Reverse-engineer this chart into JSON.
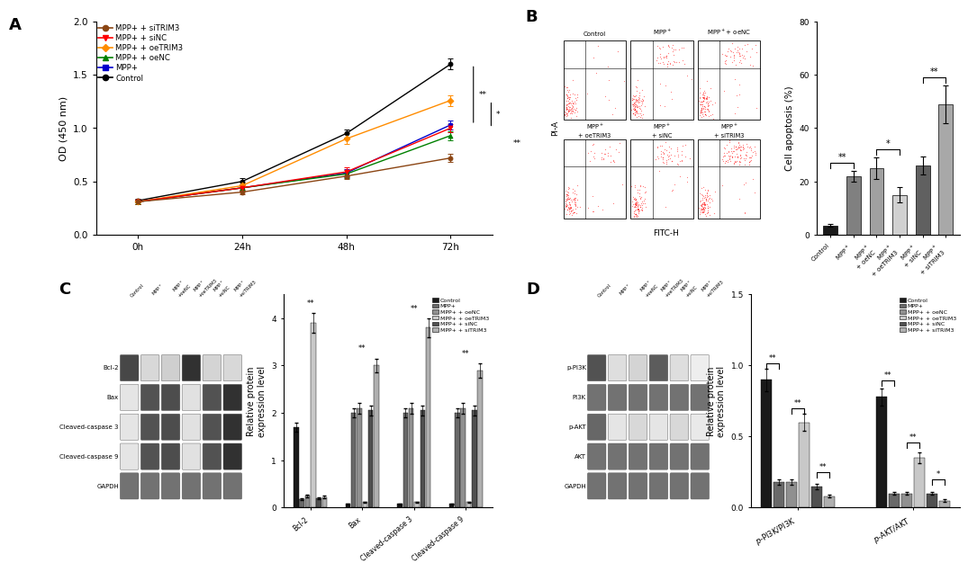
{
  "panel_A": {
    "timepoints": [
      "0h",
      "24h",
      "48h",
      "72h"
    ],
    "series": {
      "Control": {
        "color": "#000000",
        "marker": "o",
        "values": [
          0.32,
          0.5,
          0.95,
          1.6
        ],
        "errors": [
          0.02,
          0.03,
          0.04,
          0.05
        ]
      },
      "MPP+": {
        "color": "#0000CC",
        "marker": "s",
        "values": [
          0.31,
          0.44,
          0.58,
          1.03
        ],
        "errors": [
          0.02,
          0.03,
          0.04,
          0.04
        ]
      },
      "MPP+ + oeNC": {
        "color": "#008000",
        "marker": "^",
        "values": [
          0.31,
          0.44,
          0.57,
          0.93
        ],
        "errors": [
          0.02,
          0.03,
          0.04,
          0.04
        ]
      },
      "MPP+ + oeTRIM3": {
        "color": "#FF8C00",
        "marker": "D",
        "values": [
          0.31,
          0.46,
          0.9,
          1.26
        ],
        "errors": [
          0.02,
          0.03,
          0.05,
          0.05
        ]
      },
      "MPP+ + siNC": {
        "color": "#FF0000",
        "marker": "v",
        "values": [
          0.31,
          0.44,
          0.59,
          1.0
        ],
        "errors": [
          0.02,
          0.03,
          0.04,
          0.04
        ]
      },
      "MPP+ + siTRIM3": {
        "color": "#8B4513",
        "marker": "o",
        "values": [
          0.31,
          0.4,
          0.55,
          0.72
        ],
        "errors": [
          0.02,
          0.02,
          0.03,
          0.04
        ]
      }
    },
    "ylabel": "OD (450 nm)",
    "ylim": [
      0.0,
      2.0
    ],
    "yticks": [
      0.0,
      0.5,
      1.0,
      1.5,
      2.0
    ],
    "legend_order": [
      "MPP+ + siTRIM3",
      "MPP+ + siNC",
      "MPP+ + oeTRIM3",
      "MPP+ + oeNC",
      "MPP+",
      "Control"
    ]
  },
  "panel_B_bar": {
    "categories": [
      "Control",
      "MPP+",
      "MPP+\n+ oeNC",
      "MPP+\n+ oeTRIM3",
      "MPP+\n+ siNC",
      "MPP+\n+ siTRIM3"
    ],
    "values": [
      3.5,
      22.0,
      25.0,
      15.0,
      26.0,
      49.0
    ],
    "errors": [
      0.5,
      2.0,
      4.0,
      3.0,
      3.5,
      7.0
    ],
    "colors": [
      "#1a1a1a",
      "#808080",
      "#a0a0a0",
      "#d0d0d0",
      "#606060",
      "#a8a8a8"
    ],
    "ylabel": "Cell apoptosis (%)",
    "ylim": [
      0,
      80
    ],
    "yticks": [
      0,
      20,
      40,
      60,
      80
    ]
  },
  "panel_C_bar": {
    "groups": [
      "Bcl-2",
      "Bax",
      "Cleaved-caspase 3",
      "Cleaved-caspase 9"
    ],
    "series_names": [
      "Control",
      "MPP+",
      "MPP+ + oeNC",
      "MPP+ + oeTRIM3",
      "MPP+ + siNC",
      "MPP+ + siTRIM3"
    ],
    "colors": [
      "#1a1a1a",
      "#696969",
      "#909090",
      "#c8c8c8",
      "#505050",
      "#b0b0b0"
    ],
    "values": {
      "Bcl-2": [
        1.7,
        0.18,
        0.25,
        3.9,
        0.2,
        0.22
      ],
      "Bax": [
        0.08,
        2.0,
        2.1,
        0.12,
        2.05,
        3.0
      ],
      "Cleaved-caspase 3": [
        0.08,
        2.0,
        2.1,
        0.12,
        2.05,
        3.8
      ],
      "Cleaved-caspase 9": [
        0.08,
        2.0,
        2.1,
        0.12,
        2.05,
        2.9
      ]
    },
    "errors": {
      "Bcl-2": [
        0.1,
        0.02,
        0.03,
        0.2,
        0.02,
        0.03
      ],
      "Bax": [
        0.01,
        0.1,
        0.12,
        0.01,
        0.1,
        0.15
      ],
      "Cleaved-caspase 3": [
        0.01,
        0.1,
        0.12,
        0.01,
        0.1,
        0.2
      ],
      "Cleaved-caspase 9": [
        0.01,
        0.1,
        0.12,
        0.01,
        0.1,
        0.15
      ]
    },
    "ylabel": "Relative protein\nexpression level",
    "ylim": [
      0,
      4.5
    ],
    "yticks": [
      0,
      1,
      2,
      3,
      4
    ]
  },
  "panel_D_bar": {
    "groups": [
      "p-PI3K/PI3K",
      "p-AKT/AKT"
    ],
    "series_names": [
      "Control",
      "MPP+",
      "MPP+ + oeNC",
      "MPP+ + oeTRIM3",
      "MPP+ + siNC",
      "MPP+ + siTRIM3"
    ],
    "colors": [
      "#1a1a1a",
      "#696969",
      "#909090",
      "#c8c8c8",
      "#505050",
      "#b0b0b0"
    ],
    "values": {
      "p-PI3K/PI3K": [
        0.9,
        0.18,
        0.18,
        0.6,
        0.15,
        0.08
      ],
      "p-AKT/AKT": [
        0.78,
        0.1,
        0.1,
        0.35,
        0.1,
        0.05
      ]
    },
    "errors": {
      "p-PI3K/PI3K": [
        0.08,
        0.02,
        0.02,
        0.06,
        0.02,
        0.01
      ],
      "p-AKT/AKT": [
        0.06,
        0.01,
        0.01,
        0.04,
        0.01,
        0.01
      ]
    },
    "ylabel": "Relative protein\nexpression level",
    "ylim": [
      0,
      1.5
    ],
    "yticks": [
      0.0,
      0.5,
      1.0,
      1.5
    ]
  },
  "wb_C": {
    "rows": [
      "Bcl-2",
      "Bax",
      "Cleaved-caspase 3",
      "Cleaved-caspase 9",
      "GAPDH"
    ],
    "intensities": {
      "Bcl-2": [
        0.85,
        0.18,
        0.22,
        0.95,
        0.2,
        0.18
      ],
      "Bax": [
        0.12,
        0.8,
        0.82,
        0.14,
        0.8,
        0.95
      ],
      "Cleaved-caspase 3": [
        0.12,
        0.8,
        0.82,
        0.14,
        0.8,
        0.95
      ],
      "Cleaved-caspase 9": [
        0.12,
        0.8,
        0.82,
        0.14,
        0.8,
        0.95
      ],
      "GAPDH": [
        0.65,
        0.65,
        0.65,
        0.65,
        0.65,
        0.65
      ]
    }
  },
  "wb_D": {
    "rows": [
      "p-PI3K",
      "PI3K",
      "p-AKT",
      "AKT",
      "GAPDH"
    ],
    "intensities": {
      "p-PI3K": [
        0.8,
        0.15,
        0.2,
        0.75,
        0.15,
        0.08
      ],
      "PI3K": [
        0.65,
        0.65,
        0.65,
        0.65,
        0.65,
        0.65
      ],
      "p-AKT": [
        0.7,
        0.12,
        0.18,
        0.12,
        0.18,
        0.1
      ],
      "AKT": [
        0.65,
        0.65,
        0.65,
        0.65,
        0.65,
        0.65
      ],
      "GAPDH": [
        0.65,
        0.65,
        0.65,
        0.65,
        0.65,
        0.65
      ]
    }
  },
  "background_color": "#ffffff"
}
